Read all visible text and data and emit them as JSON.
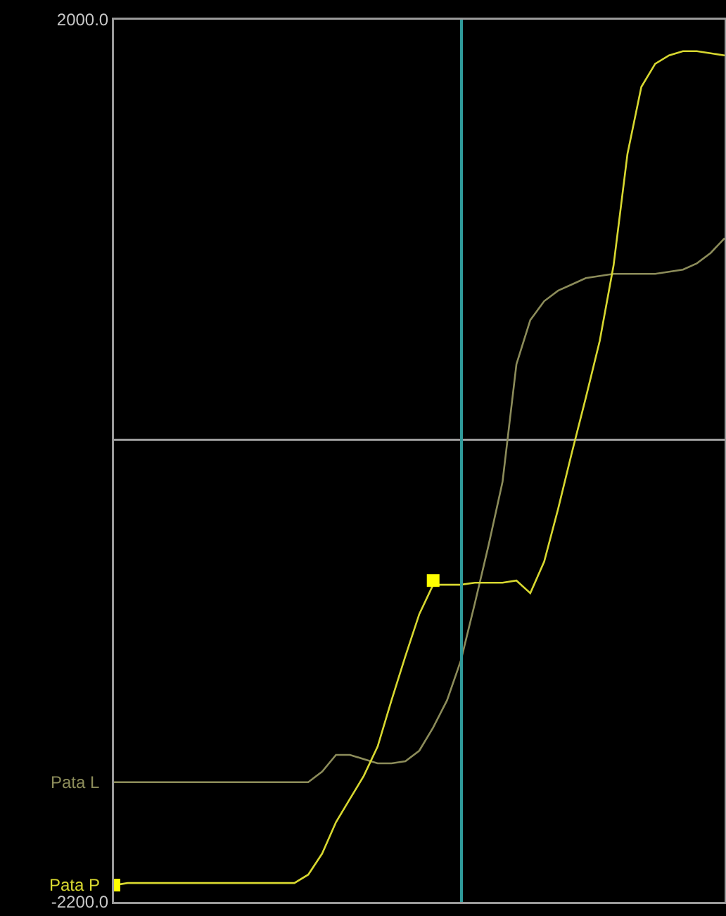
{
  "chart_data": {
    "type": "line",
    "categories": [
      null,
      null,
      null,
      null,
      null,
      null,
      null,
      null,
      null,
      null,
      null,
      null,
      null,
      null,
      null,
      null,
      null,
      null,
      null,
      null,
      null,
      null,
      null,
      null,
      null,
      null,
      null,
      null,
      null,
      null,
      null,
      null,
      null,
      null,
      null,
      null,
      null,
      null,
      null,
      null,
      null,
      null,
      null,
      null,
      null
    ],
    "series": [
      {
        "name": "Pata L",
        "color": "#8c8c5a",
        "values": [
          -1630,
          -1630,
          -1630,
          -1630,
          -1630,
          -1630,
          -1630,
          -1630,
          -1630,
          -1630,
          -1630,
          -1630,
          -1630,
          -1630,
          -1630,
          -1580,
          -1500,
          -1500,
          -1520,
          -1540,
          -1540,
          -1530,
          -1480,
          -1370,
          -1240,
          -1050,
          -780,
          -500,
          -200,
          360,
          570,
          660,
          710,
          740,
          770,
          780,
          790,
          790,
          790,
          790,
          800,
          810,
          840,
          890,
          960
        ]
      },
      {
        "name": "Pata P",
        "color": "#d8d830",
        "values": [
          -2120,
          -2110,
          -2110,
          -2110,
          -2110,
          -2110,
          -2110,
          -2110,
          -2110,
          -2110,
          -2110,
          -2110,
          -2110,
          -2110,
          -2070,
          -1970,
          -1820,
          -1710,
          -1600,
          -1460,
          -1240,
          -1030,
          -830,
          -690,
          -690,
          -690,
          -680,
          -680,
          -680,
          -670,
          -730,
          -580,
          -330,
          -60,
          200,
          470,
          830,
          1360,
          1680,
          1790,
          1830,
          1850,
          1850,
          1840,
          1830
        ]
      },
      {
        "type": "scatter",
        "marker": "square",
        "color": "#ffff00",
        "values": [
          -2120,
          null,
          null,
          null,
          null,
          null,
          null,
          null,
          null,
          null,
          null,
          null,
          null,
          null,
          null,
          null,
          null,
          null,
          null,
          null,
          null,
          null,
          null,
          -670,
          null,
          null,
          null,
          null,
          null,
          null,
          null,
          null,
          null,
          null,
          null,
          null,
          null,
          null,
          null,
          null,
          null,
          null,
          null,
          null,
          null
        ]
      }
    ],
    "ylim": [
      -2200,
      2000
    ],
    "yticks": [
      {
        "value": 2000,
        "label": "2000.0"
      },
      {
        "value": -2200,
        "label": "-2200.0"
      }
    ],
    "ref_lines": [
      {
        "axis": "y",
        "value": 0,
        "color": "#a0a0a0"
      }
    ],
    "legend": false,
    "tick_labels": "y"
  }
}
